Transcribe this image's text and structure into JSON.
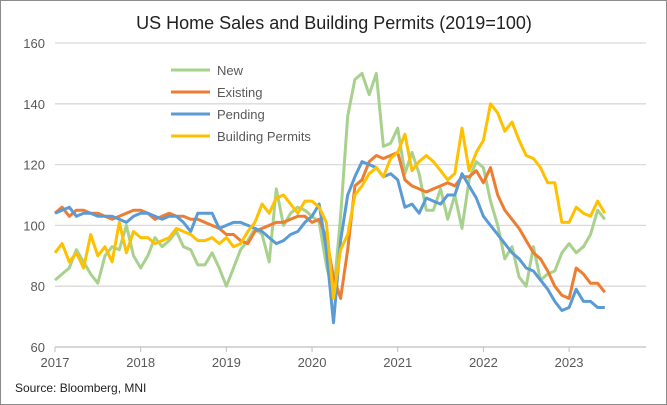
{
  "chart_data": {
    "type": "line",
    "title": "US Home Sales and Building Permits (2019=100)",
    "source": "Source: Bloomberg, MNI",
    "x_start": "2017-01",
    "frequency": "monthly",
    "x_ticks": [
      "2017",
      "2018",
      "2019",
      "2020",
      "2021",
      "2022",
      "2023"
    ],
    "y_ticks": [
      60,
      80,
      100,
      120,
      140,
      160
    ],
    "ylim": [
      60,
      160
    ],
    "grid": "horizontal",
    "legend": "top-left",
    "series": [
      {
        "name": "New",
        "color": "#a9d18e",
        "values": [
          82,
          84,
          86,
          92,
          88,
          84,
          81,
          90,
          93,
          92,
          100,
          90,
          86,
          90,
          96,
          93,
          95,
          98,
          93,
          92,
          87,
          87,
          91,
          86,
          80,
          86,
          92,
          95,
          99,
          97,
          88,
          112,
          100,
          104,
          106,
          105,
          103,
          101,
          87,
          77,
          103,
          136,
          148,
          150,
          143,
          150,
          126,
          127,
          132,
          117,
          124,
          117,
          105,
          105,
          112,
          102,
          110,
          99,
          115,
          121,
          119,
          108,
          100,
          89,
          93,
          83,
          80,
          93,
          82,
          84,
          85,
          91,
          94,
          91,
          93,
          97,
          105,
          102
        ]
      },
      {
        "name": "Existing",
        "color": "#ed7d31",
        "values": [
          104,
          106,
          103,
          105,
          105,
          104,
          104,
          103,
          102,
          103,
          104,
          105,
          105,
          104,
          102,
          103,
          104,
          103,
          103,
          102,
          102,
          101,
          100,
          99,
          97,
          97,
          95,
          94,
          98,
          99,
          100,
          101,
          101,
          102,
          103,
          103,
          101,
          102,
          96,
          83,
          76,
          92,
          113,
          115,
          121,
          123,
          122,
          123,
          124,
          115,
          113,
          112,
          111,
          112,
          113,
          114,
          113,
          116,
          116,
          118,
          114,
          119,
          110,
          105,
          102,
          99,
          95,
          91,
          89,
          85,
          80,
          77,
          76,
          86,
          84,
          81,
          81,
          78
        ]
      },
      {
        "name": "Pending",
        "color": "#5b9bd5",
        "values": [
          104,
          105,
          106,
          103,
          104,
          104,
          103,
          103,
          103,
          102,
          101,
          103,
          104,
          104,
          103,
          102,
          103,
          103,
          101,
          98,
          104,
          104,
          104,
          99,
          100,
          101,
          101,
          100,
          99,
          98,
          96,
          94,
          95,
          97,
          98,
          101,
          103,
          107,
          92,
          68,
          95,
          110,
          116,
          121,
          120,
          119,
          116,
          117,
          115,
          106,
          107,
          104,
          109,
          108,
          107,
          110,
          110,
          117,
          113,
          109,
          103,
          100,
          97,
          94,
          91,
          89,
          86,
          85,
          82,
          79,
          75,
          72,
          73,
          79,
          75,
          75,
          73,
          73
        ]
      },
      {
        "name": "Building Permits",
        "color": "#ffc000",
        "values": [
          91,
          94,
          88,
          91,
          86,
          97,
          90,
          93,
          88,
          101,
          91,
          98,
          96,
          96,
          94,
          95,
          96,
          99,
          98,
          97,
          95,
          95,
          96,
          94,
          96,
          93,
          94,
          98,
          101,
          107,
          104,
          109,
          110,
          107,
          104,
          108,
          108,
          106,
          101,
          76,
          92,
          97,
          110,
          113,
          117,
          119,
          116,
          122,
          124,
          130,
          118,
          121,
          123,
          121,
          118,
          115,
          117,
          132,
          118,
          124,
          128,
          140,
          137,
          131,
          134,
          128,
          123,
          122,
          119,
          114,
          114,
          101,
          101,
          106,
          104,
          103,
          108,
          104
        ]
      }
    ]
  }
}
